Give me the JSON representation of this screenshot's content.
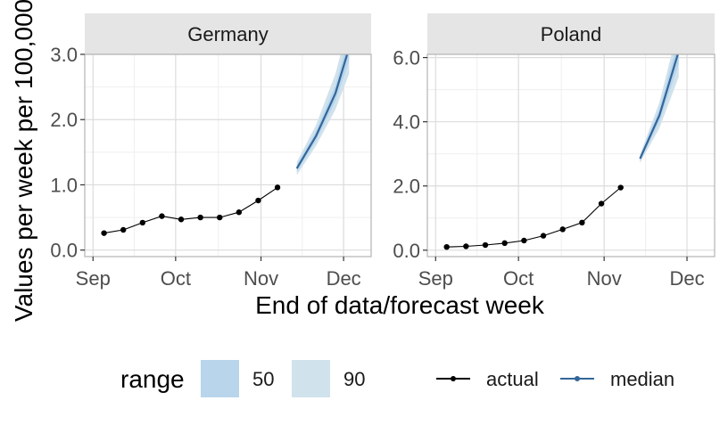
{
  "chart_data": {
    "type": "line",
    "xlabel": "End of data/forecast week",
    "ylabel": "Values per week per 100,000",
    "x_ticks": [
      "Sep",
      "Oct",
      "Nov",
      "Dec"
    ],
    "panels": [
      {
        "name": "Germany",
        "ylim": [
          -0.1,
          3.0
        ],
        "y_ticks": [
          {
            "value": 0.0,
            "label": "0.0"
          },
          {
            "value": 1.0,
            "label": "1.0"
          },
          {
            "value": 2.0,
            "label": "2.0"
          },
          {
            "value": 3.0,
            "label": "3.0"
          }
        ],
        "actual": {
          "x": [
            "2020-09-05",
            "2020-09-12",
            "2020-09-19",
            "2020-09-26",
            "2020-10-03",
            "2020-10-10",
            "2020-10-17",
            "2020-10-24",
            "2020-10-31",
            "2020-11-07"
          ],
          "y": [
            0.26,
            0.31,
            0.42,
            0.52,
            0.47,
            0.5,
            0.5,
            0.58,
            0.76,
            0.96
          ]
        },
        "median": {
          "x": [
            "2020-11-14",
            "2020-11-21",
            "2020-11-28",
            "2020-12-03"
          ],
          "y": [
            1.25,
            1.75,
            2.4,
            3.1
          ]
        },
        "range_50": {
          "x": [
            "2020-11-14",
            "2020-11-21",
            "2020-11-28",
            "2020-12-03"
          ],
          "lower": [
            1.2,
            1.68,
            2.28,
            2.9
          ],
          "upper": [
            1.3,
            1.83,
            2.52,
            3.3
          ]
        },
        "range_90": {
          "x": [
            "2020-11-14",
            "2020-11-21",
            "2020-11-28",
            "2020-12-03"
          ],
          "lower": [
            1.15,
            1.6,
            2.15,
            2.7
          ],
          "upper": [
            1.35,
            1.92,
            2.7,
            3.5
          ]
        }
      },
      {
        "name": "Poland",
        "ylim": [
          -0.2,
          6.1
        ],
        "y_ticks": [
          {
            "value": 0.0,
            "label": "0.0"
          },
          {
            "value": 2.0,
            "label": "2.0"
          },
          {
            "value": 4.0,
            "label": "4.0"
          },
          {
            "value": 6.0,
            "label": "6.0"
          }
        ],
        "actual": {
          "x": [
            "2020-09-05",
            "2020-09-12",
            "2020-09-19",
            "2020-09-26",
            "2020-10-03",
            "2020-10-10",
            "2020-10-17",
            "2020-10-24",
            "2020-10-31",
            "2020-11-07"
          ],
          "y": [
            0.1,
            0.12,
            0.16,
            0.22,
            0.3,
            0.45,
            0.65,
            0.86,
            1.45,
            1.95
          ]
        },
        "median": {
          "x": [
            "2020-11-14",
            "2020-11-21",
            "2020-11-28"
          ],
          "y": [
            2.85,
            4.2,
            6.2
          ]
        },
        "range_50": {
          "x": [
            "2020-11-14",
            "2020-11-21",
            "2020-11-28"
          ],
          "lower": [
            2.78,
            4.0,
            5.8
          ],
          "upper": [
            2.92,
            4.4,
            6.6
          ]
        },
        "range_90": {
          "x": [
            "2020-11-14",
            "2020-11-21",
            "2020-11-28"
          ],
          "lower": [
            2.72,
            3.8,
            5.4
          ],
          "upper": [
            2.98,
            4.6,
            7.0
          ]
        }
      }
    ],
    "legend": {
      "placement": "bottom",
      "range_title": "range",
      "range_items": [
        {
          "label": "50",
          "color": "#b8d5ec"
        },
        {
          "label": "90",
          "color": "#d0e2ec"
        }
      ],
      "line_items": [
        {
          "label": "actual",
          "color": "#000000"
        },
        {
          "label": "median",
          "color": "#336699"
        }
      ]
    },
    "colors": {
      "strip": "#e5e5e5",
      "grid_major": "#dcdcdc",
      "grid_minor": "#efefef",
      "median": "#336699",
      "band50": "#b8d5ec",
      "band90": "#d0e2ec",
      "actual": "#000000"
    }
  }
}
